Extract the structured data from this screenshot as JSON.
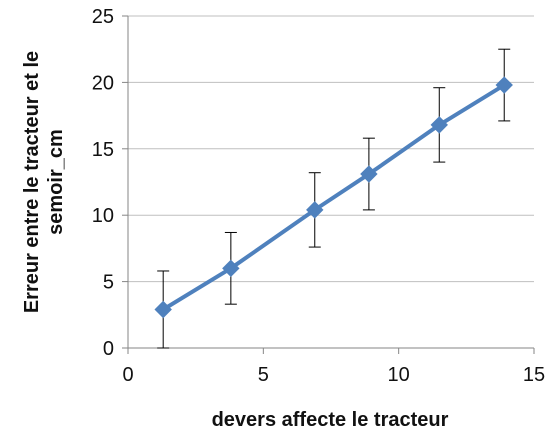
{
  "chart_data": {
    "type": "line",
    "title": "",
    "xlabel": "devers affecte le tracteur",
    "ylabel_lines": [
      "Erreur entre le tracteur et le",
      "semoir_cm"
    ],
    "xlim": [
      0,
      15
    ],
    "ylim": [
      0,
      25
    ],
    "x_ticks": [
      0,
      5,
      10,
      15
    ],
    "y_ticks": [
      0,
      5,
      10,
      15,
      20,
      25
    ],
    "grid": "horizontal",
    "legend": "none",
    "series": [
      {
        "color": "#4F81BD",
        "marker": "diamond",
        "points": [
          {
            "x": 1.3,
            "y": 2.9,
            "err": 2.9
          },
          {
            "x": 3.8,
            "y": 6.0,
            "err": 2.7
          },
          {
            "x": 6.9,
            "y": 10.4,
            "err": 2.8
          },
          {
            "x": 8.9,
            "y": 13.1,
            "err": 2.7
          },
          {
            "x": 11.5,
            "y": 16.8,
            "err": 2.8
          },
          {
            "x": 13.9,
            "y": 19.8,
            "err": 2.7
          }
        ]
      }
    ]
  }
}
